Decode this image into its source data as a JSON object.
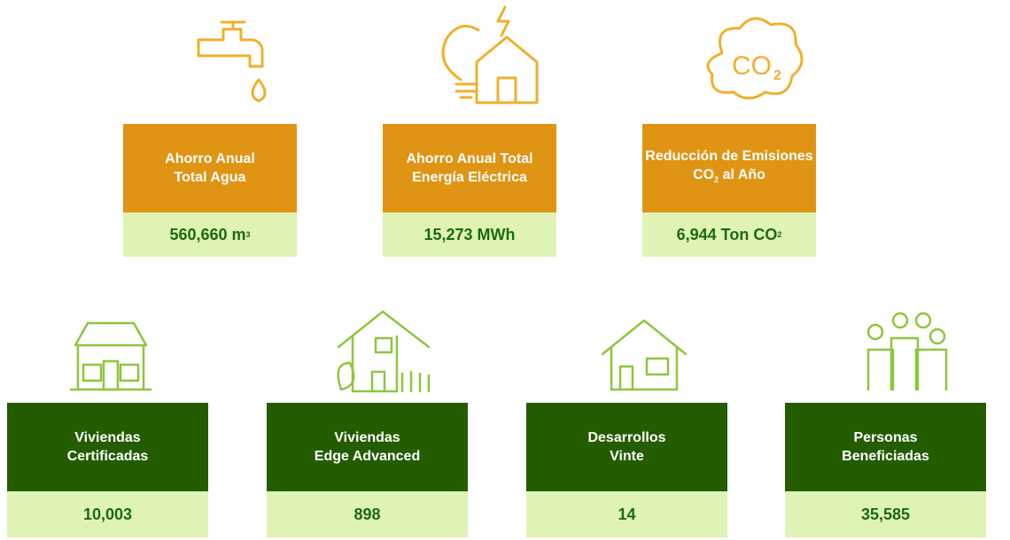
{
  "top_cards": [
    {
      "title": [
        [
          {
            "text": "Ahorro Anual"
          }
        ],
        [
          {
            "text": "Total Agua"
          }
        ]
      ],
      "value": [
        {
          "text": "560,660 m"
        },
        {
          "sup": "3"
        }
      ]
    },
    {
      "title": [
        [
          {
            "text": "Ahorro Anual Total"
          }
        ],
        [
          {
            "text": "Energía Eléctrica"
          }
        ]
      ],
      "value": [
        {
          "text": "15,273 MWh"
        }
      ]
    },
    {
      "title": [
        [
          {
            "text": "Reducción de Emisiones"
          }
        ],
        [
          {
            "text": "CO"
          },
          {
            "sub": "2"
          },
          {
            "text": " al Año"
          }
        ]
      ],
      "value": [
        {
          "text": "6,944 Ton CO"
        },
        {
          "sub": "2"
        }
      ],
      "icon_text": [
        {
          "text": "CO"
        },
        {
          "sub": "2"
        }
      ]
    }
  ],
  "bottom_cards": [
    {
      "title": [
        [
          {
            "text": "Viviendas"
          }
        ],
        [
          {
            "text": "Certificadas"
          }
        ]
      ],
      "value": [
        {
          "text": "10,003"
        }
      ]
    },
    {
      "title": [
        [
          {
            "text": "Viviendas"
          }
        ],
        [
          {
            "text": "Edge Advanced"
          }
        ]
      ],
      "value": [
        {
          "text": "898"
        }
      ]
    },
    {
      "title": [
        [
          {
            "text": "Desarrollos"
          }
        ],
        [
          {
            "text": "Vinte"
          }
        ]
      ],
      "value": [
        {
          "text": "14"
        }
      ]
    },
    {
      "title": [
        [
          {
            "text": "Personas"
          }
        ],
        [
          {
            "text": "Beneficiadas"
          }
        ]
      ],
      "value": [
        {
          "text": "35,585"
        }
      ]
    }
  ]
}
